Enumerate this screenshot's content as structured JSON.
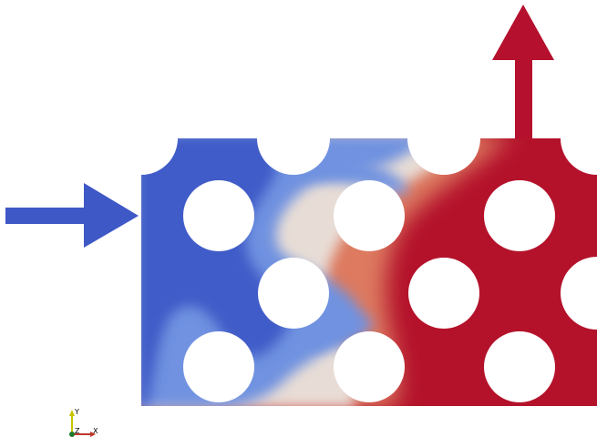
{
  "colors": {
    "cold": "#3f5cc8",
    "cold_mid": "#6f92e0",
    "light": "#e8ddd6",
    "warm_mid": "#dd7a60",
    "hot": "#b4122b",
    "inlet_arrow": "#3e58c6",
    "outlet_arrow": "#b5102d",
    "axis_y": "#c9c400",
    "axis_x": "#c0392b",
    "axis_origin": "#1f7a2a"
  },
  "icons": {
    "inlet": "right-arrow-icon",
    "outlet": "up-arrow-icon"
  },
  "axes": {
    "y_label": "Y",
    "z_label": "Z",
    "x_label": "X"
  }
}
